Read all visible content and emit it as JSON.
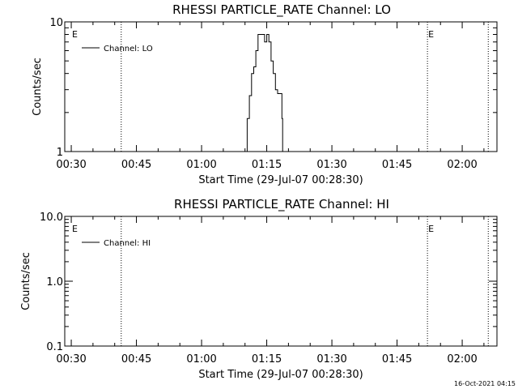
{
  "chart_data": [
    {
      "type": "line",
      "title": "RHESSI PARTICLE_RATE Channel: LO",
      "xlabel": "Start Time (29-Jul-07 00:28:30)",
      "ylabel": "Counts/sec",
      "yscale": "log",
      "ylim": [
        1,
        10
      ],
      "xlim": [
        "00:28:30",
        "02:08:00"
      ],
      "xticks": [
        "00:30",
        "00:45",
        "01:00",
        "01:15",
        "01:30",
        "01:45",
        "02:00"
      ],
      "yticks": [
        "1",
        "10"
      ],
      "legend": "Channel: LO",
      "legend_placement": "top-left",
      "markers": [
        {
          "label": "E",
          "time": "00:30:00"
        },
        {
          "label": "E",
          "time": "01:52:00"
        }
      ],
      "vlines": [
        "00:41:30",
        "01:52:00",
        "02:06:00"
      ],
      "series": [
        {
          "name": "Channel: LO",
          "x": [
            "01:09:30",
            "01:10:30",
            "01:11:00",
            "01:11:30",
            "01:12:00",
            "01:12:30",
            "01:13:00",
            "01:13:30",
            "01:14:00",
            "01:14:30",
            "01:15:00",
            "01:15:30",
            "01:16:00",
            "01:16:30",
            "01:17:00",
            "01:17:30",
            "01:18:00",
            "01:18:30",
            "01:18:40"
          ],
          "y": [
            1,
            1.8,
            2.7,
            4.0,
            4.5,
            6.0,
            8.0,
            8.0,
            8.0,
            7.0,
            8.0,
            7.0,
            5.0,
            4.0,
            3.0,
            2.8,
            2.8,
            1.8,
            1
          ]
        }
      ]
    },
    {
      "type": "line",
      "title": "RHESSI PARTICLE_RATE Channel: HI",
      "xlabel": "Start Time (29-Jul-07 00:28:30)",
      "ylabel": "Counts/sec",
      "yscale": "log",
      "ylim": [
        0.1,
        10
      ],
      "xlim": [
        "00:28:30",
        "02:08:00"
      ],
      "xticks": [
        "00:30",
        "00:45",
        "01:00",
        "01:15",
        "01:30",
        "01:45",
        "02:00"
      ],
      "yticks": [
        "0.1",
        "1.0",
        "10.0"
      ],
      "legend": "Channel: HI",
      "legend_placement": "top-left",
      "markers": [
        {
          "label": "E",
          "time": "00:30:00"
        },
        {
          "label": "E",
          "time": "01:52:00"
        }
      ],
      "vlines": [
        "00:41:30",
        "01:52:00",
        "02:06:00"
      ],
      "series": [
        {
          "name": "Channel: HI",
          "x": [],
          "y": []
        }
      ]
    }
  ],
  "footer": {
    "timestamp": "16-Oct-2021 04:15"
  }
}
